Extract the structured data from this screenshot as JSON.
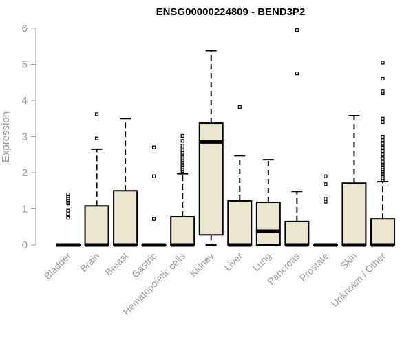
{
  "chart_data": {
    "type": "boxplot",
    "title": "ENSG00000224809 - BEND3P2",
    "ylabel": "Expression",
    "xlabel": "",
    "ylim": [
      0,
      6
    ],
    "yticks": [
      0,
      1,
      2,
      3,
      4,
      5,
      6
    ],
    "box_fill": "#ede6cf",
    "stroke": "#000000",
    "categories": [
      "Bladder",
      "Brain",
      "Breast",
      "Gastric",
      "Hematopoietic cells",
      "Kidney",
      "Liver",
      "Lung",
      "Pancreas",
      "Prostate",
      "Skin",
      "Unknown / Other"
    ],
    "boxes": [
      {
        "q1": 0,
        "median": 0,
        "q3": 0,
        "whisker_low": 0,
        "whisker_high": 0,
        "outliers": [
          0.75,
          0.85,
          0.95,
          1.15,
          1.2,
          1.25,
          1.3,
          1.35,
          1.4
        ]
      },
      {
        "q1": 0,
        "median": 0,
        "q3": 1.08,
        "whisker_low": 0,
        "whisker_high": 2.65,
        "outliers": [
          2.95,
          3.62
        ]
      },
      {
        "q1": 0,
        "median": 0,
        "q3": 1.5,
        "whisker_low": 0,
        "whisker_high": 3.5,
        "outliers": []
      },
      {
        "q1": 0,
        "median": 0,
        "q3": 0,
        "whisker_low": 0,
        "whisker_high": 0,
        "outliers": [
          0.72,
          1.9,
          2.7
        ]
      },
      {
        "q1": 0,
        "median": 0,
        "q3": 0.78,
        "whisker_low": 0,
        "whisker_high": 1.97,
        "outliers": [
          2.05,
          2.1,
          2.15,
          2.2,
          2.25,
          2.3,
          2.35,
          2.4,
          2.45,
          2.5,
          2.55,
          2.62,
          2.7,
          2.75,
          2.88,
          3.02
        ]
      },
      {
        "q1": 0.28,
        "median": 2.85,
        "q3": 3.37,
        "whisker_low": 0,
        "whisker_high": 5.38,
        "outliers": []
      },
      {
        "q1": 0,
        "median": 0,
        "q3": 1.22,
        "whisker_low": 0,
        "whisker_high": 2.47,
        "outliers": [
          3.82
        ]
      },
      {
        "q1": 0,
        "median": 0.38,
        "q3": 1.18,
        "whisker_low": 0,
        "whisker_high": 2.36,
        "outliers": []
      },
      {
        "q1": 0,
        "median": 0,
        "q3": 0.65,
        "whisker_low": 0,
        "whisker_high": 1.48,
        "outliers": [
          4.75,
          5.95
        ]
      },
      {
        "q1": 0,
        "median": 0,
        "q3": 0,
        "whisker_low": 0,
        "whisker_high": 0,
        "outliers": [
          1.2,
          1.28,
          1.68,
          1.9
        ]
      },
      {
        "q1": 0,
        "median": 0,
        "q3": 1.71,
        "whisker_low": 0,
        "whisker_high": 3.58,
        "outliers": []
      },
      {
        "q1": 0,
        "median": 0,
        "q3": 0.72,
        "whisker_low": 0,
        "whisker_high": 1.75,
        "outliers": [
          1.8,
          1.85,
          1.9,
          1.95,
          2.0,
          2.05,
          2.1,
          2.15,
          2.2,
          2.25,
          2.3,
          2.4,
          2.5,
          2.6,
          2.7,
          2.8,
          2.9,
          3.0,
          3.4,
          3.5,
          4.2,
          4.25,
          4.6,
          5.05
        ]
      }
    ]
  }
}
